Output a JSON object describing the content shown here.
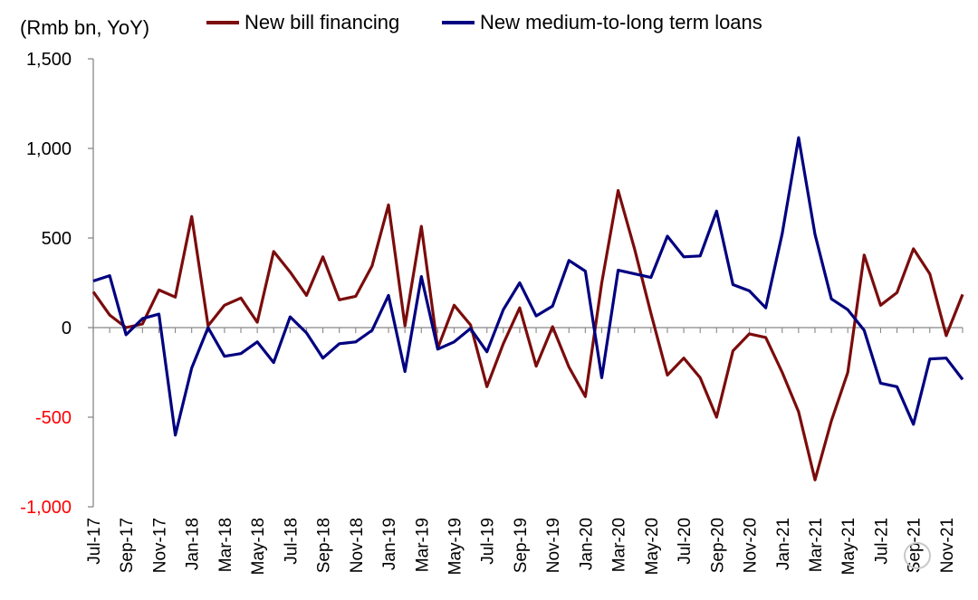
{
  "chart_data": {
    "type": "line",
    "unit_label": "(Rmb bn, YoY)",
    "ylim": [
      -1000,
      1500
    ],
    "yticks": [
      -1000,
      -500,
      0,
      500,
      1000,
      1500
    ],
    "ytick_labels": [
      "-1,000",
      "-500",
      "0",
      "500",
      "1,000",
      "1,500"
    ],
    "negative_tick_color": "#ff0000",
    "x": [
      "Jul-17",
      "Aug-17",
      "Sep-17",
      "Oct-17",
      "Nov-17",
      "Dec-17",
      "Jan-18",
      "Feb-18",
      "Mar-18",
      "Apr-18",
      "May-18",
      "Jun-18",
      "Jul-18",
      "Aug-18",
      "Sep-18",
      "Oct-18",
      "Nov-18",
      "Dec-18",
      "Jan-19",
      "Feb-19",
      "Mar-19",
      "Apr-19",
      "May-19",
      "Jun-19",
      "Jul-19",
      "Aug-19",
      "Sep-19",
      "Oct-19",
      "Nov-19",
      "Dec-19",
      "Jan-20",
      "Feb-20",
      "Mar-20",
      "Apr-20",
      "May-20",
      "Jun-20",
      "Jul-20",
      "Aug-20",
      "Sep-20",
      "Oct-20",
      "Nov-20",
      "Dec-20",
      "Jan-21",
      "Feb-21",
      "Mar-21",
      "Apr-21",
      "May-21",
      "Jun-21",
      "Jul-21",
      "Aug-21",
      "Sep-21",
      "Oct-21",
      "Nov-21",
      "Dec-21"
    ],
    "xtick_labels": [
      "Jul-17",
      "Sep-17",
      "Nov-17",
      "Jan-18",
      "Mar-18",
      "May-18",
      "Jul-18",
      "Sep-18",
      "Nov-18",
      "Jan-19",
      "Mar-19",
      "May-19",
      "Jul-19",
      "Sep-19",
      "Nov-19",
      "Jan-20",
      "Mar-20",
      "May-20",
      "Jul-20",
      "Sep-20",
      "Nov-20",
      "Jan-21",
      "Mar-21",
      "May-21",
      "Jul-21",
      "Sep-21",
      "Nov-21"
    ],
    "series": [
      {
        "name": "New bill financing",
        "color": "#7b0c0c",
        "values": [
          200,
          70,
          0,
          20,
          210,
          170,
          620,
          10,
          125,
          165,
          30,
          425,
          310,
          180,
          395,
          155,
          175,
          345,
          685,
          10,
          565,
          -115,
          125,
          15,
          -330,
          -90,
          110,
          -215,
          5,
          -220,
          -385,
          250,
          765,
          440,
          80,
          -265,
          -170,
          -280,
          -500,
          -130,
          -35,
          -55,
          -250,
          -470,
          -850,
          -520,
          -250,
          405,
          125,
          195,
          440,
          300,
          -45,
          185
        ]
      },
      {
        "name": "New medium-to-long term loans",
        "color": "#000080",
        "values": [
          260,
          290,
          -40,
          50,
          75,
          -600,
          -225,
          0,
          -160,
          -145,
          -80,
          -195,
          60,
          -30,
          -170,
          -90,
          -80,
          -15,
          180,
          -245,
          285,
          -120,
          -80,
          -5,
          -135,
          100,
          250,
          65,
          120,
          375,
          315,
          -280,
          320,
          300,
          280,
          510,
          395,
          400,
          650,
          240,
          205,
          110,
          525,
          1060,
          520,
          160,
          100,
          -15,
          -310,
          -330,
          -540,
          -175,
          -170,
          -290
        ]
      }
    ]
  }
}
